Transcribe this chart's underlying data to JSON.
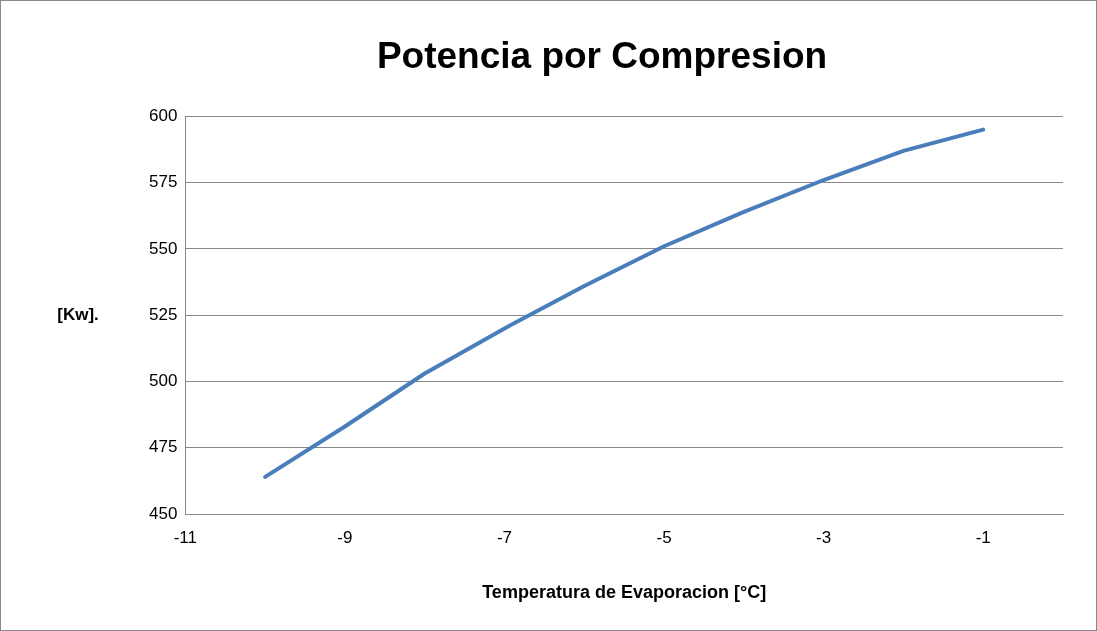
{
  "chart_data": {
    "type": "line",
    "title": "Potencia por Compresion",
    "xlabel": "Temperatura de Evaporacion [°C]",
    "ylabel": "[Kw].",
    "x": [
      -10,
      -9,
      -8,
      -7,
      -6,
      -5,
      -4,
      -3,
      -2,
      -1
    ],
    "series": [
      {
        "color": "#4a7ebb",
        "values": [
          464,
          483,
          503,
          520,
          536,
          551,
          564,
          576,
          587,
          595
        ]
      }
    ],
    "xlim": [
      -11,
      0
    ],
    "xticks": [
      -11,
      -9,
      -7,
      -5,
      -3,
      -1
    ],
    "ylim": [
      450,
      600
    ],
    "yticks": [
      450,
      475,
      500,
      525,
      550,
      575,
      600
    ],
    "grid": "y",
    "legend": false,
    "marker": "none",
    "line_style": "solid"
  }
}
